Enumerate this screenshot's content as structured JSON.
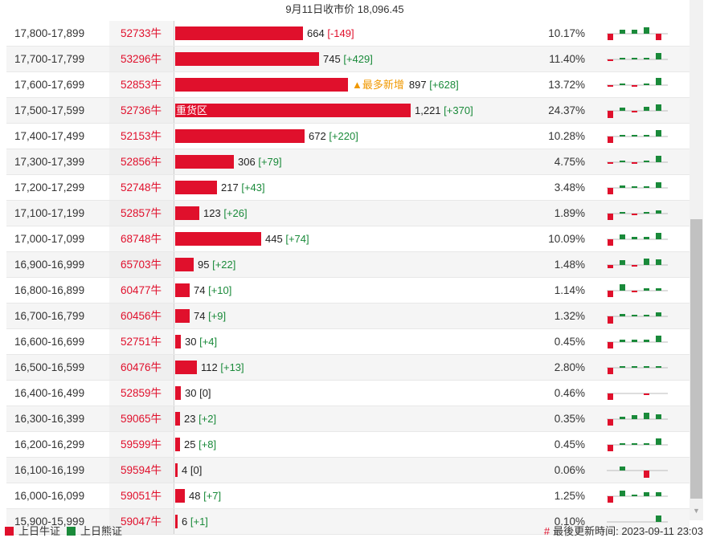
{
  "header": {
    "title": "9月11日收市价 18,096.45"
  },
  "colors": {
    "bull": "#e0102c",
    "bear": "#1a8a3a",
    "note": "#f09800"
  },
  "rows": [
    {
      "strike": "17,800-17,899",
      "code": "52733牛",
      "value": "664",
      "change": "[-149]",
      "pct": "10.17%",
      "barLabel": "",
      "note": "",
      "spark": [
        -0.5,
        0.3,
        0.3,
        0.55,
        -0.5
      ]
    },
    {
      "strike": "17,700-17,799",
      "code": "53296牛",
      "value": "745",
      "change": "[+429]",
      "pct": "11.40%",
      "barLabel": "",
      "note": "",
      "spark": [
        -0.06,
        0.06,
        0.06,
        0.06,
        0.55
      ]
    },
    {
      "strike": "17,600-17,699",
      "code": "52853牛",
      "value": "897",
      "change": "[+628]",
      "pct": "13.72%",
      "barLabel": "",
      "note": "▲最多新增",
      "spark": [
        -0.15,
        0.06,
        -0.06,
        0.12,
        0.6
      ]
    },
    {
      "strike": "17,500-17,599",
      "code": "52736牛",
      "value": "1,221",
      "change": "[+370]",
      "pct": "24.37%",
      "barLabel": "重货区",
      "note": "",
      "spark": [
        -0.6,
        0.25,
        -0.12,
        0.35,
        0.55
      ]
    },
    {
      "strike": "17,400-17,499",
      "code": "52153牛",
      "value": "672",
      "change": "[+220]",
      "pct": "10.28%",
      "barLabel": "",
      "note": "",
      "spark": [
        -0.55,
        0.06,
        0.06,
        0.06,
        0.55
      ]
    },
    {
      "strike": "17,300-17,399",
      "code": "52856牛",
      "value": "306",
      "change": "[+79]",
      "pct": "4.75%",
      "barLabel": "",
      "note": "",
      "spark": [
        -0.06,
        0.06,
        -0.06,
        0.06,
        0.55
      ]
    },
    {
      "strike": "17,200-17,299",
      "code": "52748牛",
      "value": "217",
      "change": "[+43]",
      "pct": "3.48%",
      "barLabel": "",
      "note": "",
      "spark": [
        -0.55,
        0.2,
        0.1,
        0.1,
        0.45
      ]
    },
    {
      "strike": "17,100-17,199",
      "code": "52857牛",
      "value": "123",
      "change": "[+26]",
      "pct": "1.89%",
      "barLabel": "",
      "note": "",
      "spark": [
        -0.55,
        0.12,
        -0.06,
        0.12,
        0.25
      ]
    },
    {
      "strike": "17,000-17,099",
      "code": "68748牛",
      "value": "445",
      "change": "[+74]",
      "pct": "10.09%",
      "barLabel": "",
      "note": "",
      "spark": [
        -0.55,
        0.4,
        0.2,
        0.2,
        0.55
      ]
    },
    {
      "strike": "16,900-16,999",
      "code": "65703牛",
      "value": "95",
      "change": "[+22]",
      "pct": "1.48%",
      "barLabel": "",
      "note": "",
      "spark": [
        -0.25,
        0.4,
        -0.1,
        0.55,
        0.45
      ]
    },
    {
      "strike": "16,800-16,899",
      "code": "60477牛",
      "value": "74",
      "change": "[+10]",
      "pct": "1.14%",
      "barLabel": "",
      "note": "",
      "spark": [
        -0.5,
        0.5,
        -0.08,
        0.2,
        0.2
      ]
    },
    {
      "strike": "16,700-16,799",
      "code": "60456牛",
      "value": "74",
      "change": "[+9]",
      "pct": "1.32%",
      "barLabel": "",
      "note": "",
      "spark": [
        -0.6,
        0.2,
        0.12,
        0.12,
        0.35
      ]
    },
    {
      "strike": "16,600-16,699",
      "code": "52751牛",
      "value": "30",
      "change": "[+4]",
      "pct": "0.45%",
      "barLabel": "",
      "note": "",
      "spark": [
        -0.55,
        0.2,
        0.2,
        0.2,
        0.55
      ]
    },
    {
      "strike": "16,500-16,599",
      "code": "60476牛",
      "value": "112",
      "change": "[+13]",
      "pct": "2.80%",
      "barLabel": "",
      "note": "",
      "spark": [
        -0.55,
        0.06,
        0.06,
        0.06,
        0.1
      ]
    },
    {
      "strike": "16,400-16,499",
      "code": "52859牛",
      "value": "30",
      "change": "[0]",
      "pct": "0.46%",
      "barLabel": "",
      "note": "",
      "spark": [
        -0.55,
        0,
        0,
        -0.1,
        0
      ]
    },
    {
      "strike": "16,300-16,399",
      "code": "59065牛",
      "value": "23",
      "change": "[+2]",
      "pct": "0.35%",
      "barLabel": "",
      "note": "",
      "spark": [
        -0.55,
        0.2,
        0.35,
        0.55,
        0.4
      ]
    },
    {
      "strike": "16,200-16,299",
      "code": "59599牛",
      "value": "25",
      "change": "[+8]",
      "pct": "0.45%",
      "barLabel": "",
      "note": "",
      "spark": [
        -0.55,
        0.06,
        0.06,
        0.15,
        0.55
      ]
    },
    {
      "strike": "16,100-16,199",
      "code": "59594牛",
      "value": "4",
      "change": "[0]",
      "pct": "0.06%",
      "barLabel": "",
      "note": "",
      "spark": [
        0,
        0.3,
        0,
        -0.6,
        0
      ]
    },
    {
      "strike": "16,000-16,099",
      "code": "59051牛",
      "value": "48",
      "change": "[+7]",
      "pct": "1.25%",
      "barLabel": "",
      "note": "",
      "spark": [
        -0.55,
        0.45,
        0.06,
        0.3,
        0.3
      ]
    },
    {
      "strike": "15,900-15,999",
      "code": "59047牛",
      "value": "6",
      "change": "[+1]",
      "pct": "0.10%",
      "barLabel": "",
      "note": "",
      "spark": [
        0,
        0,
        0,
        0,
        0.55
      ]
    }
  ],
  "footer": {
    "legend_bull": "上日牛证",
    "legend_bear": "上日熊证",
    "update_label": "最後更新時间:",
    "update_time": "2023-09-11 23:03"
  }
}
